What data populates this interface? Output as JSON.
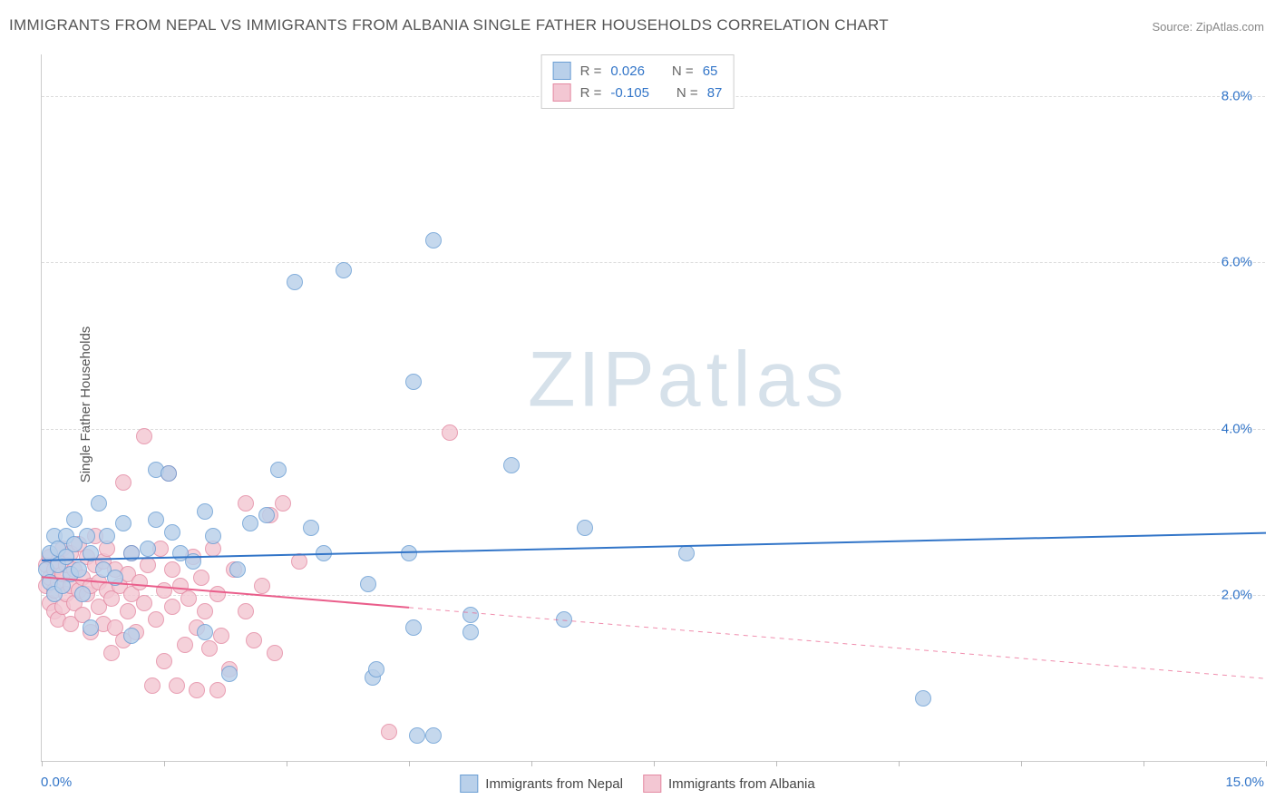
{
  "title": "IMMIGRANTS FROM NEPAL VS IMMIGRANTS FROM ALBANIA SINGLE FATHER HOUSEHOLDS CORRELATION CHART",
  "source_label": "Source: ",
  "source_name": "ZipAtlas.com",
  "ylabel": "Single Father Households",
  "watermark_zip": "ZIP",
  "watermark_atlas": "atlas",
  "chart": {
    "type": "scatter",
    "xlim": [
      0,
      15
    ],
    "ylim": [
      0,
      8.5
    ],
    "x_ticks": [
      0.0,
      1.5,
      3.0,
      4.5,
      6.0,
      7.5,
      9.0,
      10.5,
      12.0,
      13.5,
      15.0
    ],
    "y_grid": [
      2.0,
      4.0,
      6.0,
      8.0
    ],
    "y_tick_labels": [
      "2.0%",
      "4.0%",
      "6.0%",
      "8.0%"
    ],
    "x_tick_labels": {
      "left": "0.0%",
      "right": "15.0%"
    },
    "x_label_color": "#3275c8",
    "y_label_color": "#3275c8",
    "grid_color": "#dcdcdc",
    "axis_color": "#cccccc",
    "background_color": "#ffffff",
    "marker_radius": 9,
    "marker_border_width": 1,
    "series": [
      {
        "name": "Immigrants from Nepal",
        "fill": "#b9d0ea",
        "border": "#6a9ed4",
        "line_color": "#3275c8",
        "line_width": 2,
        "R_label": "R  =",
        "R": "0.026",
        "N_label": "N  =",
        "N": "65",
        "trend": {
          "x1": 0,
          "y1": 2.42,
          "x2": 15,
          "y2": 2.75,
          "solid_until_x": 15
        },
        "points": [
          [
            0.05,
            2.3
          ],
          [
            0.1,
            2.5
          ],
          [
            0.1,
            2.15
          ],
          [
            0.15,
            2.0
          ],
          [
            0.15,
            2.7
          ],
          [
            0.2,
            2.35
          ],
          [
            0.2,
            2.55
          ],
          [
            0.25,
            2.1
          ],
          [
            0.3,
            2.45
          ],
          [
            0.3,
            2.7
          ],
          [
            0.35,
            2.25
          ],
          [
            0.4,
            2.6
          ],
          [
            0.4,
            2.9
          ],
          [
            0.45,
            2.3
          ],
          [
            0.5,
            2.0
          ],
          [
            0.55,
            2.7
          ],
          [
            0.6,
            1.6
          ],
          [
            0.6,
            2.5
          ],
          [
            0.7,
            3.1
          ],
          [
            0.75,
            2.3
          ],
          [
            0.8,
            2.7
          ],
          [
            0.9,
            2.2
          ],
          [
            1.0,
            2.85
          ],
          [
            1.1,
            2.5
          ],
          [
            1.1,
            1.5
          ],
          [
            1.3,
            2.55
          ],
          [
            1.4,
            2.9
          ],
          [
            1.4,
            3.5
          ],
          [
            1.55,
            3.45
          ],
          [
            1.6,
            2.75
          ],
          [
            1.7,
            2.5
          ],
          [
            1.85,
            2.4
          ],
          [
            2.0,
            3.0
          ],
          [
            2.0,
            1.55
          ],
          [
            2.1,
            2.7
          ],
          [
            2.3,
            1.05
          ],
          [
            2.4,
            2.3
          ],
          [
            2.55,
            2.85
          ],
          [
            2.75,
            2.95
          ],
          [
            2.9,
            3.5
          ],
          [
            3.1,
            5.75
          ],
          [
            3.3,
            2.8
          ],
          [
            3.45,
            2.5
          ],
          [
            3.7,
            5.9
          ],
          [
            4.0,
            2.13
          ],
          [
            4.05,
            1.0
          ],
          [
            4.1,
            1.1
          ],
          [
            4.5,
            2.5
          ],
          [
            4.55,
            4.55
          ],
          [
            4.55,
            1.6
          ],
          [
            4.6,
            0.3
          ],
          [
            4.8,
            0.3
          ],
          [
            4.8,
            6.25
          ],
          [
            5.25,
            1.55
          ],
          [
            5.25,
            1.75
          ],
          [
            5.75,
            3.55
          ],
          [
            6.4,
            1.7
          ],
          [
            6.65,
            2.8
          ],
          [
            7.9,
            2.5
          ],
          [
            10.8,
            0.75
          ]
        ]
      },
      {
        "name": "Immigrants from Albania",
        "fill": "#f3c7d3",
        "border": "#e48aa3",
        "line_color": "#ea5e8b",
        "line_width": 2,
        "R_label": "R  =",
        "R": "-0.105",
        "N_label": "N  =",
        "N": "87",
        "trend": {
          "x1": 0,
          "y1": 2.22,
          "x2": 15,
          "y2": 1.0,
          "solid_until_x": 4.5
        },
        "points": [
          [
            0.05,
            2.1
          ],
          [
            0.05,
            2.35
          ],
          [
            0.1,
            1.9
          ],
          [
            0.1,
            2.2
          ],
          [
            0.1,
            2.45
          ],
          [
            0.15,
            1.8
          ],
          [
            0.15,
            2.05
          ],
          [
            0.15,
            2.3
          ],
          [
            0.2,
            1.7
          ],
          [
            0.2,
            2.15
          ],
          [
            0.2,
            2.4
          ],
          [
            0.25,
            1.85
          ],
          [
            0.25,
            2.25
          ],
          [
            0.25,
            2.55
          ],
          [
            0.3,
            2.0
          ],
          [
            0.3,
            2.35
          ],
          [
            0.35,
            1.65
          ],
          [
            0.35,
            2.1
          ],
          [
            0.35,
            2.5
          ],
          [
            0.4,
            1.9
          ],
          [
            0.4,
            2.3
          ],
          [
            0.45,
            2.05
          ],
          [
            0.45,
            2.6
          ],
          [
            0.5,
            1.75
          ],
          [
            0.5,
            2.2
          ],
          [
            0.55,
            2.0
          ],
          [
            0.55,
            2.45
          ],
          [
            0.6,
            1.55
          ],
          [
            0.6,
            2.1
          ],
          [
            0.65,
            2.35
          ],
          [
            0.65,
            2.7
          ],
          [
            0.7,
            1.85
          ],
          [
            0.7,
            2.15
          ],
          [
            0.75,
            1.65
          ],
          [
            0.75,
            2.4
          ],
          [
            0.8,
            2.05
          ],
          [
            0.8,
            2.55
          ],
          [
            0.85,
            1.3
          ],
          [
            0.85,
            1.95
          ],
          [
            0.9,
            1.6
          ],
          [
            0.9,
            2.3
          ],
          [
            0.95,
            2.1
          ],
          [
            1.0,
            1.45
          ],
          [
            1.0,
            3.35
          ],
          [
            1.05,
            1.8
          ],
          [
            1.05,
            2.25
          ],
          [
            1.1,
            2.0
          ],
          [
            1.1,
            2.5
          ],
          [
            1.15,
            1.55
          ],
          [
            1.2,
            2.15
          ],
          [
            1.25,
            3.9
          ],
          [
            1.25,
            1.9
          ],
          [
            1.3,
            2.35
          ],
          [
            1.35,
            0.9
          ],
          [
            1.4,
            1.7
          ],
          [
            1.45,
            2.55
          ],
          [
            1.5,
            1.2
          ],
          [
            1.5,
            2.05
          ],
          [
            1.55,
            3.45
          ],
          [
            1.6,
            1.85
          ],
          [
            1.6,
            2.3
          ],
          [
            1.65,
            0.9
          ],
          [
            1.7,
            2.1
          ],
          [
            1.75,
            1.4
          ],
          [
            1.8,
            1.95
          ],
          [
            1.85,
            2.45
          ],
          [
            1.9,
            1.6
          ],
          [
            1.9,
            0.85
          ],
          [
            1.95,
            2.2
          ],
          [
            2.0,
            1.8
          ],
          [
            2.05,
            1.35
          ],
          [
            2.1,
            2.55
          ],
          [
            2.15,
            2.0
          ],
          [
            2.15,
            0.85
          ],
          [
            2.2,
            1.5
          ],
          [
            2.3,
            1.1
          ],
          [
            2.35,
            2.3
          ],
          [
            2.5,
            1.8
          ],
          [
            2.5,
            3.1
          ],
          [
            2.6,
            1.45
          ],
          [
            2.7,
            2.1
          ],
          [
            2.8,
            2.95
          ],
          [
            2.85,
            1.3
          ],
          [
            2.95,
            3.1
          ],
          [
            3.15,
            2.4
          ],
          [
            4.25,
            0.35
          ],
          [
            5.0,
            3.95
          ]
        ]
      }
    ]
  }
}
